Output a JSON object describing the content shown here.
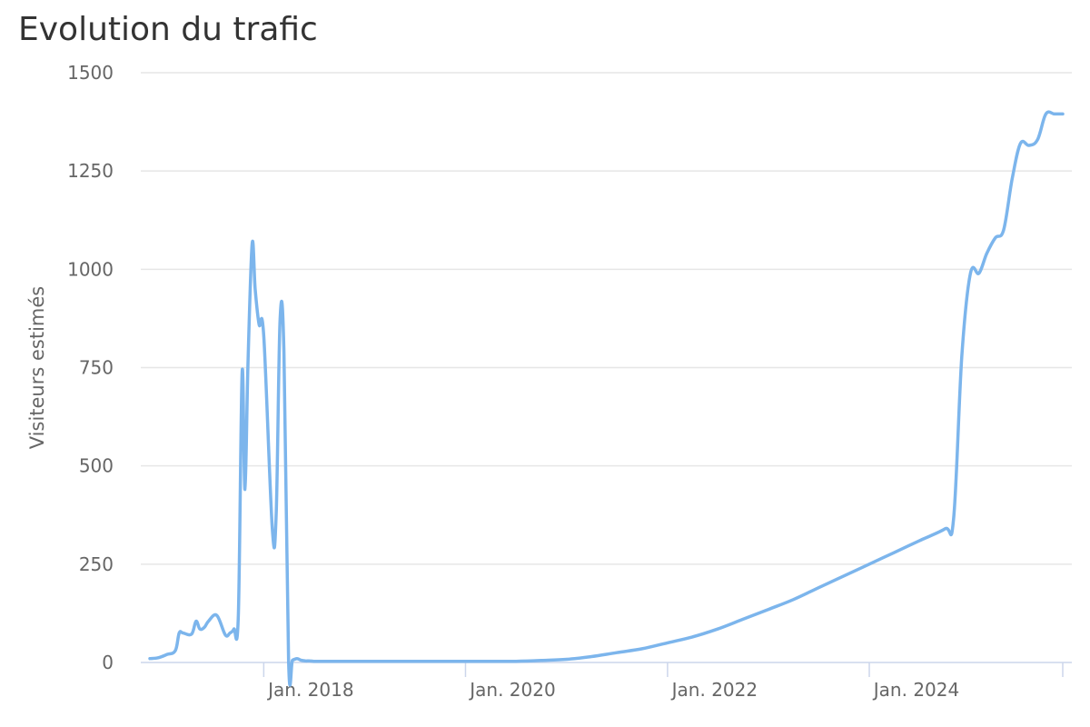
{
  "title": "Evolution du trafic",
  "colors": {
    "line": "#7cb5ec",
    "grid": "#e6e6e6",
    "axis": "#ccd6eb",
    "text": "#666666",
    "title": "#333333"
  },
  "chart_data": {
    "type": "line",
    "title": "Evolution du trafic",
    "xlabel": "",
    "ylabel": "Visiteurs estimés",
    "ylim": [
      0,
      1500
    ],
    "yticks": [
      0,
      250,
      500,
      750,
      1000,
      1250,
      1500
    ],
    "ytick_labels": [
      "0",
      "250",
      "500",
      "750",
      "1000",
      "1250",
      "1500"
    ],
    "xlim": [
      "2016-11-15",
      "2025-12-01"
    ],
    "xticks": [
      "2018-01-01",
      "2020-01-01",
      "2022-01-01",
      "2024-01-01"
    ],
    "xtick_labels": [
      "Jan. 2018",
      "Jan. 2020",
      "Jan. 2022",
      "Jan. 2024"
    ],
    "grid": true,
    "legend": false,
    "series": [
      {
        "x": [
          "2016-11-15",
          "2016-12-15",
          "2017-01-15",
          "2017-02-15",
          "2017-03-01",
          "2017-03-15",
          "2017-04-15",
          "2017-05-01",
          "2017-05-15",
          "2017-06-01",
          "2017-06-15",
          "2017-07-15",
          "2017-08-15",
          "2017-09-01",
          "2017-09-15",
          "2017-10-01",
          "2017-10-15",
          "2017-10-25",
          "2017-11-05",
          "2017-11-20",
          "2017-12-01",
          "2017-12-15",
          "2018-01-01",
          "2018-02-01",
          "2018-02-15",
          "2018-03-01",
          "2018-03-15",
          "2018-04-01",
          "2018-04-15",
          "2018-05-01",
          "2018-05-15",
          "2018-06-01",
          "2018-06-15",
          "2018-07-01",
          "2018-07-15",
          "2018-08-01",
          "2018-08-15",
          "2018-08-25",
          "2018-09-15",
          "2018-09-25",
          "2018-10-15",
          "2018-11-15",
          "2018-12-15",
          "2019-01-15",
          "2019-04-01",
          "2019-07-01",
          "2019-10-01",
          "2020-01-01",
          "2020-04-01",
          "2020-07-01",
          "2020-10-01",
          "2021-01-01",
          "2021-04-01",
          "2021-07-01",
          "2021-10-01",
          "2022-01-01",
          "2022-04-01",
          "2022-07-01",
          "2022-10-01",
          "2023-01-01",
          "2023-04-01",
          "2023-07-01",
          "2023-10-01",
          "2024-01-01",
          "2024-04-01",
          "2024-07-01",
          "2024-10-01",
          "2024-11-01",
          "2024-12-01",
          "2025-01-01",
          "2025-02-01",
          "2025-03-01",
          "2025-04-01",
          "2025-05-01",
          "2025-06-01",
          "2025-07-01",
          "2025-08-01",
          "2025-09-01",
          "2025-10-01",
          "2025-11-01",
          "2025-12-01"
        ],
        "values": [
          10,
          12,
          20,
          30,
          75,
          75,
          72,
          105,
          85,
          90,
          105,
          120,
          70,
          75,
          85,
          120,
          740,
          440,
          760,
          1065,
          950,
          860,
          830,
          340,
          380,
          870,
          790,
          5,
          6,
          10,
          6,
          4,
          4,
          3,
          3,
          3,
          3,
          3,
          3,
          3,
          3,
          3,
          3,
          3,
          3,
          3,
          3,
          3,
          3,
          3,
          5,
          8,
          15,
          25,
          35,
          50,
          65,
          85,
          110,
          135,
          160,
          190,
          220,
          250,
          280,
          310,
          340,
          365,
          780,
          990,
          990,
          1040,
          1080,
          1100,
          1230,
          1320,
          1315,
          1330,
          1395,
          1395,
          1395
        ]
      }
    ]
  }
}
